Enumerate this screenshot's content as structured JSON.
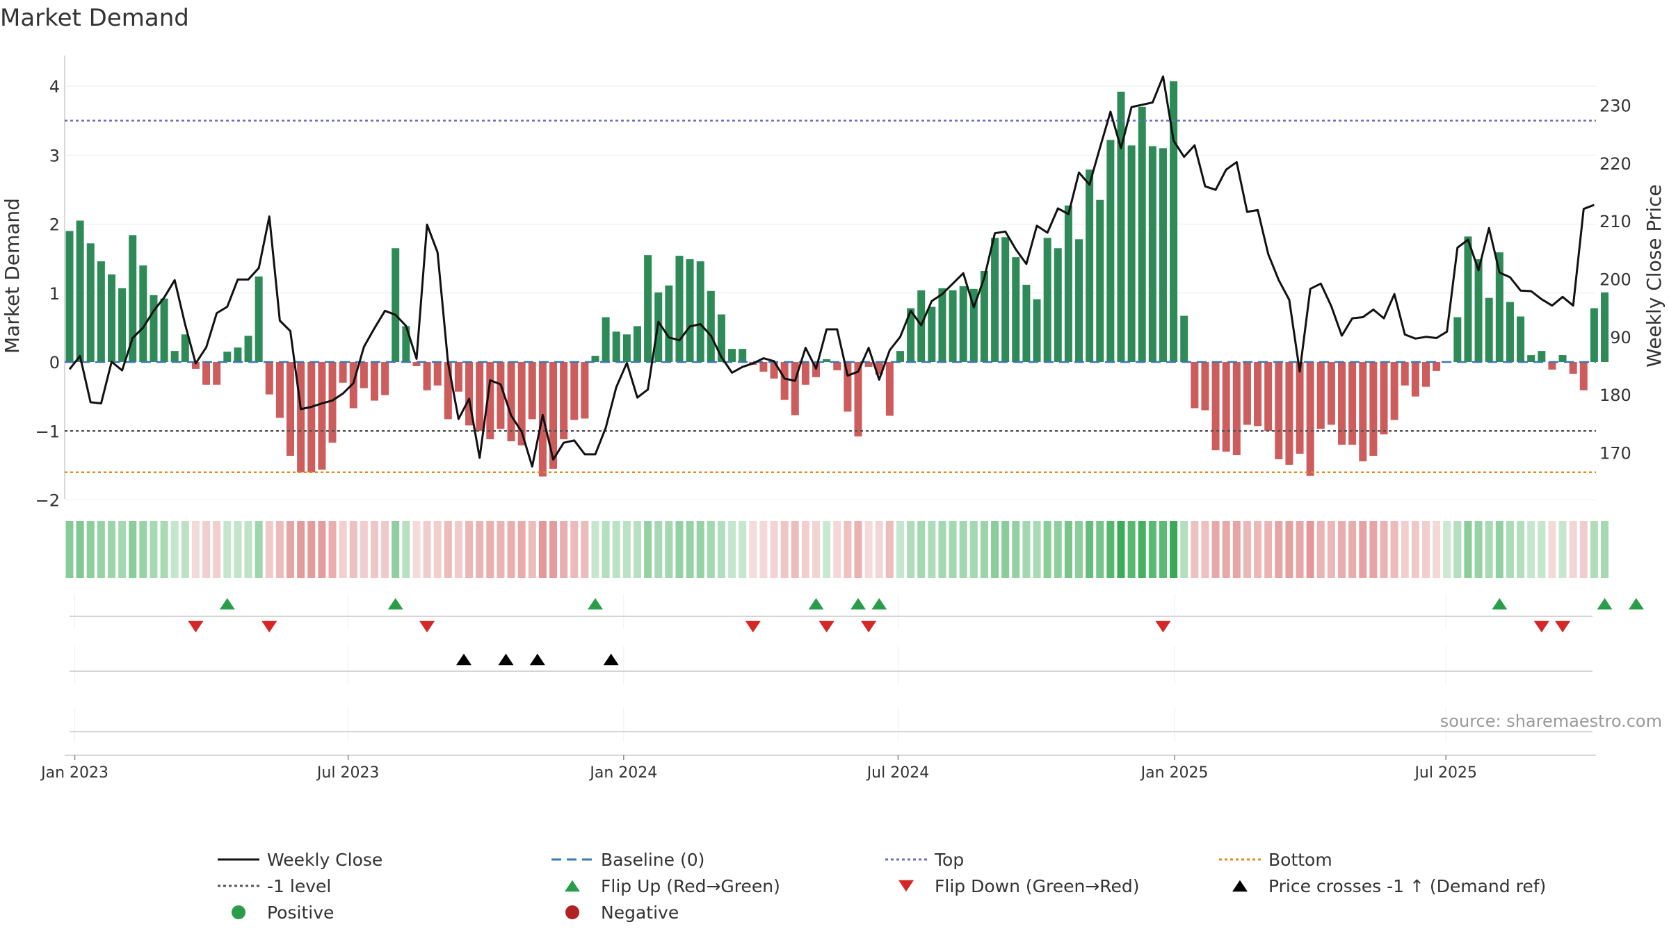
{
  "chart_data": {
    "type": "bar",
    "title": "Market Demand",
    "ylabel": "Market Demand",
    "y2label": "Weekly Close Price",
    "ylim": [
      -2,
      4.2
    ],
    "y2lim": [
      162,
      235
    ],
    "yticks": [
      -2,
      -1,
      0,
      1,
      2,
      3,
      4
    ],
    "ytick_labels": [
      "−2",
      "−1",
      "0",
      "1",
      "2",
      "3",
      "4"
    ],
    "y2ticks": [
      170,
      180,
      190,
      200,
      210,
      220,
      230
    ],
    "y2tick_labels": [
      "170",
      "180",
      "190",
      "200",
      "210",
      "220",
      "230"
    ],
    "x_tick_labels": [
      "Jan 2023",
      "Jul 2023",
      "Jan 2024",
      "Jul 2024",
      "Jan 2025",
      "Jul 2025"
    ],
    "x_tick_weeks": [
      0.5,
      26.5,
      52.7,
      78.8,
      105.1,
      130.9
    ],
    "demand": [
      1.9,
      2.05,
      1.72,
      1.46,
      1.27,
      1.07,
      1.84,
      1.4,
      0.97,
      0.92,
      0.16,
      0.4,
      -0.1,
      -0.33,
      -0.33,
      0.15,
      0.21,
      0.38,
      1.24,
      -0.47,
      -0.81,
      -1.36,
      -1.6,
      -1.6,
      -1.56,
      -1.17,
      -0.3,
      -0.67,
      -0.38,
      -0.56,
      -0.48,
      1.65,
      0.52,
      -0.06,
      -0.41,
      -0.34,
      -0.83,
      -0.43,
      -0.92,
      -1.0,
      -1.12,
      -0.97,
      -1.15,
      -1.21,
      -0.83,
      -1.66,
      -1.55,
      -1.12,
      -0.84,
      -0.82,
      0.09,
      0.65,
      0.44,
      0.4,
      0.52,
      1.55,
      1.01,
      1.11,
      1.54,
      1.49,
      1.46,
      1.03,
      0.69,
      0.19,
      0.19,
      -0.04,
      -0.14,
      -0.24,
      -0.55,
      -0.77,
      -0.33,
      -0.22,
      0.04,
      -0.12,
      -0.72,
      -1.08,
      -0.07,
      -0.18,
      -0.78,
      0.16,
      0.78,
      1.04,
      0.8,
      1.07,
      1.04,
      1.1,
      1.06,
      1.32,
      1.8,
      1.81,
      1.52,
      1.12,
      0.91,
      1.8,
      1.65,
      2.27,
      1.78,
      2.79,
      2.35,
      3.22,
      3.92,
      3.14,
      3.7,
      3.13,
      3.1,
      4.07,
      0.67,
      -0.67,
      -0.7,
      -1.28,
      -1.3,
      -1.35,
      -0.91,
      -0.93,
      -1.0,
      -1.41,
      -1.49,
      -1.33,
      -1.65,
      -0.97,
      -0.91,
      -1.2,
      -1.2,
      -1.44,
      -1.36,
      -1.05,
      -0.84,
      -0.34,
      -0.5,
      -0.36,
      -0.13,
      0.01,
      0.65,
      1.82,
      1.49,
      0.93,
      1.59,
      0.87,
      0.66,
      0.1,
      0.16,
      -0.11,
      0.1,
      -0.17,
      -0.41,
      0.78,
      1.01
    ],
    "close": [
      184.4,
      186.7,
      178.7,
      178.5,
      185.7,
      184.2,
      189.8,
      191.6,
      194.5,
      196.8,
      199.8,
      192.1,
      185.4,
      188.2,
      194.1,
      195.2,
      199.9,
      199.9,
      201.9,
      210.8,
      192.8,
      191.0,
      177.5,
      177.9,
      178.5,
      179.0,
      180.2,
      182.0,
      188.3,
      191.5,
      194.5,
      193.8,
      191.9,
      186.2,
      209.4,
      204.6,
      185.5,
      175.8,
      179.3,
      169.1,
      182.5,
      181.8,
      176.4,
      173.6,
      167.6,
      176.5,
      168.8,
      171.7,
      172.1,
      169.7,
      169.7,
      174.3,
      181.3,
      185.5,
      179.5,
      180.9,
      192.6,
      189.9,
      189.4,
      191.8,
      192.2,
      190.2,
      186.5,
      183.8,
      184.8,
      185.4,
      186.3,
      185.8,
      182.8,
      182.4,
      188.1,
      184.5,
      191.3,
      191.3,
      183.3,
      184.0,
      188.1,
      182.6,
      187.7,
      190.0,
      194.5,
      192.0,
      196.2,
      197.4,
      199.2,
      201.0,
      195.1,
      200.2,
      207.9,
      208.2,
      205.1,
      202.6,
      209.2,
      208.0,
      212.2,
      211.2,
      218.4,
      216.3,
      222.7,
      228.9,
      222.6,
      229.7,
      230.1,
      230.5,
      235.0,
      223.9,
      221.1,
      223.1,
      216.0,
      215.4,
      218.9,
      220.2,
      211.6,
      211.9,
      204.3,
      199.8,
      196.4,
      184.0,
      198.3,
      199.2,
      195.3,
      190.2,
      193.2,
      193.4,
      194.7,
      193.2,
      197.4,
      190.4,
      189.7,
      190.0,
      189.8,
      190.9,
      205.4,
      206.8,
      201.5,
      208.8,
      201.1,
      200.3,
      198.0,
      197.9,
      196.5,
      195.4,
      196.9,
      195.4,
      212.1,
      212.8
    ],
    "flip_up_weeks": [
      15,
      31,
      50,
      71,
      75,
      77,
      136,
      146,
      149
    ],
    "flip_down_weeks": [
      12,
      19,
      34,
      65,
      72,
      76,
      104,
      140,
      142
    ],
    "cross_weeks": [
      37.5,
      41.5,
      44.5,
      51.5
    ],
    "levels": {
      "top": 3.5,
      "minus_one": -1,
      "bottom": -1.6,
      "baseline": 0
    },
    "source": "source: sharemaestro.com",
    "legend": [
      {
        "label": "Weekly Close",
        "type": "line",
        "color": "#111111",
        "dash": ""
      },
      {
        "label": "Baseline (0)",
        "type": "line",
        "color": "#3b78b0",
        "dash": "14,8"
      },
      {
        "label": "Top",
        "type": "line",
        "color": "#6c6cc0",
        "dash": "4,4"
      },
      {
        "label": "Bottom",
        "type": "line",
        "color": "#e08a1e",
        "dash": "4,4"
      },
      {
        "label": "-1 level",
        "type": "line",
        "color": "#555555",
        "dash": "4,4"
      },
      {
        "label": "Flip Up (Red→Green)",
        "type": "tri-up",
        "color": "#2a9d4a"
      },
      {
        "label": "Flip Down (Green→Red)",
        "type": "tri-down",
        "color": "#d62728"
      },
      {
        "label": "Price crosses -1 ↑ (Demand ref)",
        "type": "tri-up",
        "color": "#000000"
      },
      {
        "label": "Positive",
        "type": "dot",
        "color": "#2a9d4a"
      },
      {
        "label": "Negative",
        "type": "dot",
        "color": "#b22222"
      }
    ]
  },
  "colors": {
    "positive_bar": "#2e8b57",
    "negative_bar": "#cd5c5c",
    "close_line": "#111111",
    "baseline": "#3b78b0",
    "top": "#6c6cc0",
    "bottom": "#e08a1e",
    "minus_one": "#555555"
  }
}
